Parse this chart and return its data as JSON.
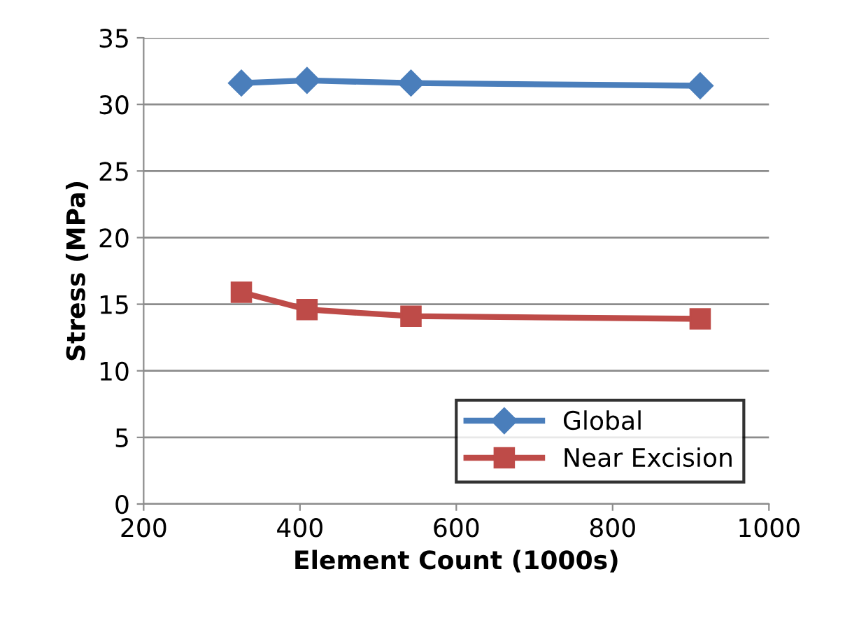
{
  "chart_data": {
    "type": "line",
    "xlabel": "Element Count (1000s)",
    "ylabel": "Stress (MPa)",
    "series": [
      {
        "name": "Global",
        "color": "#4a7ebb",
        "marker": "diamond",
        "x": [
          325,
          409,
          542,
          912
        ],
        "values": [
          31.6,
          31.8,
          31.6,
          31.4
        ]
      },
      {
        "name": "Near Excision",
        "color": "#be4b48",
        "marker": "square",
        "x": [
          325,
          409,
          542,
          912
        ],
        "values": [
          15.9,
          14.6,
          14.1,
          13.9
        ]
      }
    ],
    "xlim": [
      200,
      1000
    ],
    "xticks": [
      200,
      400,
      600,
      800,
      1000
    ],
    "ylim": [
      0,
      35
    ],
    "yticks": [
      0,
      5,
      10,
      15,
      20,
      25,
      30,
      35
    ],
    "grid": "y",
    "legend": "bottom right",
    "line_style": "solid"
  }
}
